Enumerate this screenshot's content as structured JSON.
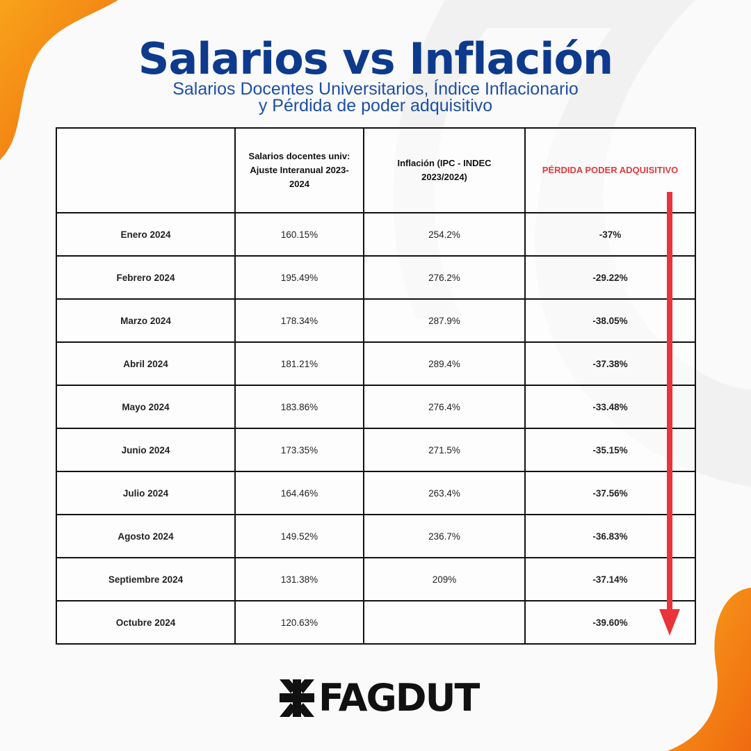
{
  "title": "Salarios vs Inflación",
  "subtitle": {
    "line1": "Salarios Docentes Universitarios, Índice Inflacionario",
    "line2": "y Pérdida de poder adquisitivo"
  },
  "table": {
    "headers": [
      "",
      "Salarios docentes univ: Ajuste Interanual 2023-2024",
      "Inflación (IPC - INDEC 2023/2024)",
      "PÉRDIDA PODER ADQUISITIVO"
    ],
    "rows": [
      {
        "month": "Enero 2024",
        "salary": "160.15%",
        "inflation": "254.2%",
        "loss": "-37%"
      },
      {
        "month": "Febrero 2024",
        "salary": "195.49%",
        "inflation": "276.2%",
        "loss": "-29.22%"
      },
      {
        "month": "Marzo 2024",
        "salary": "178.34%",
        "inflation": "287.9%",
        "loss": "-38.05%"
      },
      {
        "month": "Abril 2024",
        "salary": "181.21%",
        "inflation": "289.4%",
        "loss": "-37.38%"
      },
      {
        "month": "Mayo 2024",
        "salary": "183.86%",
        "inflation": "276.4%",
        "loss": "-33.48%"
      },
      {
        "month": "Junio 2024",
        "salary": "173.35%",
        "inflation": "271.5%",
        "loss": "-35.15%"
      },
      {
        "month": "Julio 2024",
        "salary": "164.46%",
        "inflation": "263.4%",
        "loss": "-37.56%"
      },
      {
        "month": "Agosto 2024",
        "salary": "149.52%",
        "inflation": "236.7%",
        "loss": "-36.83%"
      },
      {
        "month": "Septiembre 2024",
        "salary": "131.38%",
        "inflation": "209%",
        "loss": "-37.14%"
      },
      {
        "month": "Octubre 2024",
        "salary": "120.63%",
        "inflation": "",
        "loss": "-39.60%"
      }
    ]
  },
  "logo": {
    "text": "FAGDUT",
    "icon": "utn-logo-icon"
  },
  "colors": {
    "title": "#0d3a8c",
    "subtitle": "#1d4ea8",
    "loss": "#e03a3e",
    "accent_orange": "#f47a12",
    "arrow": "#e8343a"
  }
}
